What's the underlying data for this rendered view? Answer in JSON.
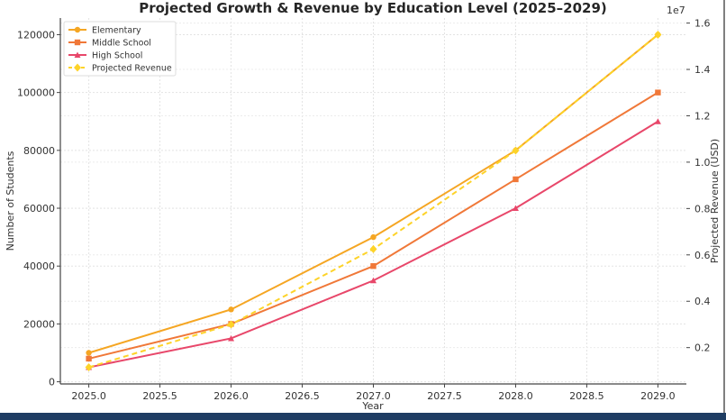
{
  "chart_data": {
    "type": "line",
    "title": "Projected Growth & Revenue by Education Level (2025–2029)",
    "xlabel": "Year",
    "ylabel": "Number of Students",
    "y2label": "Projected Revenue (USD)",
    "y2_offset_label": "1e7",
    "x": [
      2025,
      2026,
      2027,
      2028,
      2029
    ],
    "xlim": [
      2024.8,
      2029.2
    ],
    "ylim": [
      -750,
      125750
    ],
    "y2lim": [
      432500,
      16217500
    ],
    "xticks": [
      "2025.0",
      "2025.5",
      "2026.0",
      "2026.5",
      "2027.0",
      "2027.5",
      "2028.0",
      "2028.5",
      "2029.0"
    ],
    "yticks": [
      "0",
      "20000",
      "40000",
      "60000",
      "80000",
      "100000",
      "120000"
    ],
    "y2ticks": [
      "0.2",
      "0.4",
      "0.6",
      "0.8",
      "1.0",
      "1.2",
      "1.4",
      "1.6"
    ],
    "grid": true,
    "legend_position": "top-left",
    "series": [
      {
        "name": "Elementary",
        "axis": "left",
        "values": [
          10000,
          25000,
          50000,
          80000,
          120000
        ],
        "color": "#f5a623",
        "marker": "circle",
        "dash": false
      },
      {
        "name": "Middle School",
        "axis": "left",
        "values": [
          8000,
          20000,
          40000,
          70000,
          100000
        ],
        "color": "#f07838",
        "marker": "square",
        "dash": false
      },
      {
        "name": "High School",
        "axis": "left",
        "values": [
          5000,
          15000,
          35000,
          60000,
          90000
        ],
        "color": "#e8476a",
        "marker": "triangle",
        "dash": false
      },
      {
        "name": "Projected Revenue",
        "axis": "right",
        "values": [
          1150000,
          3000000,
          6250000,
          10500000,
          15500000
        ],
        "color": "#fdd329",
        "marker": "diamond",
        "dash": true
      }
    ]
  }
}
